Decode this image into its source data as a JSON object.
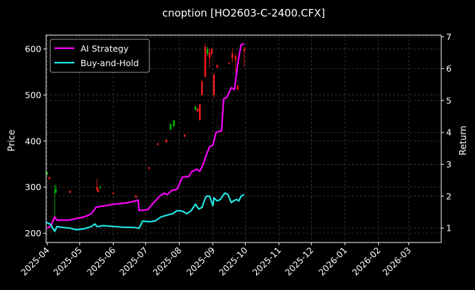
{
  "chart_data": {
    "type": "line",
    "title": "cnoption [HO2603-C-2400.CFX]",
    "ylabel": "Price",
    "y2label": "Return",
    "ylim": [
      180,
      630
    ],
    "y2lim": [
      0.55,
      7.05
    ],
    "xlim": [
      "2025-03-31",
      "2026-03-31"
    ],
    "x_ticks": [
      "2025-04",
      "2025-05",
      "2025-06",
      "2025-07",
      "2025-08",
      "2025-09",
      "2025-10",
      "2025-11",
      "2025-12",
      "2026-01",
      "2026-02",
      "2026-03"
    ],
    "y_ticks": [
      200,
      300,
      400,
      500,
      600
    ],
    "y2_ticks": [
      1,
      2,
      3,
      4,
      5,
      6,
      7
    ],
    "grid": true,
    "legend_position": "top-left",
    "colors": {
      "up": "#00c000",
      "down": "#ff1a1a",
      "ai": "#ff00ff",
      "bh": "#22e6e6",
      "grid": "#555555"
    },
    "legend": [
      {
        "label": "AI Strategy",
        "color": "#ff00ff"
      },
      {
        "label": "Buy-and-Hold",
        "color": "#22e6e6"
      }
    ],
    "candles": [
      {
        "date": "2025-04-01",
        "open": 328,
        "close": 332,
        "high": 334,
        "low": 326
      },
      {
        "date": "2025-04-03",
        "open": 322,
        "close": 318,
        "high": 323,
        "low": 317
      },
      {
        "date": "2025-04-08",
        "open": 288,
        "close": 290,
        "high": 305,
        "low": 235
      },
      {
        "date": "2025-04-09",
        "open": 290,
        "close": 295,
        "high": 305,
        "low": 285
      },
      {
        "date": "2025-04-22",
        "open": 292,
        "close": 288,
        "high": 293,
        "low": 287
      },
      {
        "date": "2025-05-17",
        "open": 300,
        "close": 295,
        "high": 318,
        "low": 292
      },
      {
        "date": "2025-05-18",
        "open": 295,
        "close": 290,
        "high": 297,
        "low": 288
      },
      {
        "date": "2025-05-20",
        "open": 298,
        "close": 301,
        "high": 302,
        "low": 297
      },
      {
        "date": "2025-06-01",
        "open": 288,
        "close": 285,
        "high": 289,
        "low": 284
      },
      {
        "date": "2025-06-22",
        "open": 282,
        "close": 278,
        "high": 283,
        "low": 276
      },
      {
        "date": "2025-07-04",
        "open": 343,
        "close": 340,
        "high": 344,
        "low": 338
      },
      {
        "date": "2025-07-12",
        "open": 395,
        "close": 392,
        "high": 396,
        "low": 390
      },
      {
        "date": "2025-07-20",
        "open": 403,
        "close": 398,
        "high": 404,
        "low": 396
      },
      {
        "date": "2025-07-24",
        "open": 425,
        "close": 437,
        "high": 438,
        "low": 424
      },
      {
        "date": "2025-07-27",
        "open": 432,
        "close": 445,
        "high": 446,
        "low": 430
      },
      {
        "date": "2025-08-06",
        "open": 414,
        "close": 410,
        "high": 415,
        "low": 409
      },
      {
        "date": "2025-08-16",
        "open": 468,
        "close": 475,
        "high": 476,
        "low": 466
      },
      {
        "date": "2025-08-18",
        "open": 470,
        "close": 465,
        "high": 472,
        "low": 462
      },
      {
        "date": "2025-08-20",
        "open": 480,
        "close": 445,
        "high": 480,
        "low": 445
      },
      {
        "date": "2025-08-22",
        "open": 530,
        "close": 500,
        "high": 532,
        "low": 498
      },
      {
        "date": "2025-08-25",
        "open": 605,
        "close": 540,
        "high": 612,
        "low": 538
      },
      {
        "date": "2025-08-27",
        "open": 590,
        "close": 600,
        "high": 605,
        "low": 585
      },
      {
        "date": "2025-08-29",
        "open": 592,
        "close": 580,
        "high": 600,
        "low": 560
      },
      {
        "date": "2025-08-31",
        "open": 600,
        "close": 590,
        "high": 603,
        "low": 585
      },
      {
        "date": "2025-09-02",
        "open": 545,
        "close": 500,
        "high": 545,
        "low": 495
      },
      {
        "date": "2025-09-05",
        "open": 565,
        "close": 560,
        "high": 566,
        "low": 558
      },
      {
        "date": "2025-09-16",
        "open": 570,
        "close": 568,
        "high": 572,
        "low": 566
      },
      {
        "date": "2025-09-19",
        "open": 590,
        "close": 580,
        "high": 600,
        "low": 570
      },
      {
        "date": "2025-09-22",
        "open": 585,
        "close": 575,
        "high": 590,
        "low": 550
      },
      {
        "date": "2025-09-24",
        "open": 520,
        "close": 512,
        "high": 522,
        "low": 510
      },
      {
        "date": "2025-09-30",
        "open": 600,
        "close": 595,
        "high": 605,
        "low": 560
      }
    ],
    "series": [
      {
        "name": "AI Strategy",
        "x": [
          "2025-04-01",
          "2025-04-04",
          "2025-04-08",
          "2025-04-10",
          "2025-04-14",
          "2025-04-21",
          "2025-04-28",
          "2025-05-05",
          "2025-05-12",
          "2025-05-16",
          "2025-05-20",
          "2025-05-28",
          "2025-06-01",
          "2025-06-08",
          "2025-06-15",
          "2025-06-21",
          "2025-06-24",
          "2025-06-25",
          "2025-06-30",
          "2025-07-03",
          "2025-07-07",
          "2025-07-14",
          "2025-07-18",
          "2025-07-21",
          "2025-07-25",
          "2025-07-30",
          "2025-08-04",
          "2025-08-10",
          "2025-08-12",
          "2025-08-17",
          "2025-08-20",
          "2025-08-23",
          "2025-08-26",
          "2025-08-29",
          "2025-09-01",
          "2025-09-04",
          "2025-09-06",
          "2025-09-09",
          "2025-09-11",
          "2025-09-14",
          "2025-09-18",
          "2025-09-21",
          "2025-09-24",
          "2025-09-27",
          "2025-09-30"
        ],
        "values": [
          1.0,
          1.05,
          1.35,
          1.25,
          1.25,
          1.25,
          1.3,
          1.35,
          1.45,
          1.65,
          1.68,
          1.72,
          1.75,
          1.77,
          1.8,
          1.85,
          1.88,
          1.55,
          1.57,
          1.58,
          1.75,
          2.0,
          2.1,
          2.05,
          2.18,
          2.22,
          2.6,
          2.62,
          2.75,
          2.85,
          2.78,
          3.0,
          3.3,
          3.55,
          3.6,
          4.0,
          4.02,
          4.05,
          5.05,
          5.1,
          5.4,
          5.35,
          6.15,
          6.75,
          6.78
        ]
      },
      {
        "name": "Buy-and-Hold",
        "x": [
          "2025-03-31",
          "2025-04-04",
          "2025-04-07",
          "2025-04-08",
          "2025-04-10",
          "2025-04-15",
          "2025-04-22",
          "2025-04-28",
          "2025-05-05",
          "2025-05-12",
          "2025-05-15",
          "2025-05-17",
          "2025-05-19",
          "2025-05-22",
          "2025-06-01",
          "2025-06-10",
          "2025-06-20",
          "2025-06-25",
          "2025-06-28",
          "2025-07-05",
          "2025-07-10",
          "2025-07-15",
          "2025-07-22",
          "2025-07-26",
          "2025-07-30",
          "2025-08-04",
          "2025-08-08",
          "2025-08-12",
          "2025-08-16",
          "2025-08-19",
          "2025-08-22",
          "2025-08-24",
          "2025-08-26",
          "2025-08-29",
          "2025-09-01",
          "2025-09-02",
          "2025-09-05",
          "2025-09-08",
          "2025-09-12",
          "2025-09-15",
          "2025-09-18",
          "2025-09-20",
          "2025-09-23",
          "2025-09-25",
          "2025-09-27",
          "2025-09-30"
        ],
        "values": [
          1.18,
          1.12,
          0.95,
          0.9,
          1.05,
          1.02,
          1.0,
          0.95,
          0.98,
          1.05,
          1.13,
          1.05,
          1.05,
          1.08,
          1.05,
          1.03,
          1.02,
          1.0,
          1.22,
          1.2,
          1.23,
          1.35,
          1.42,
          1.45,
          1.55,
          1.53,
          1.45,
          1.55,
          1.75,
          1.6,
          1.65,
          1.85,
          2.0,
          2.0,
          1.7,
          1.95,
          1.85,
          1.9,
          2.1,
          2.05,
          1.8,
          1.85,
          1.9,
          1.85,
          2.0,
          2.05
        ]
      }
    ]
  }
}
